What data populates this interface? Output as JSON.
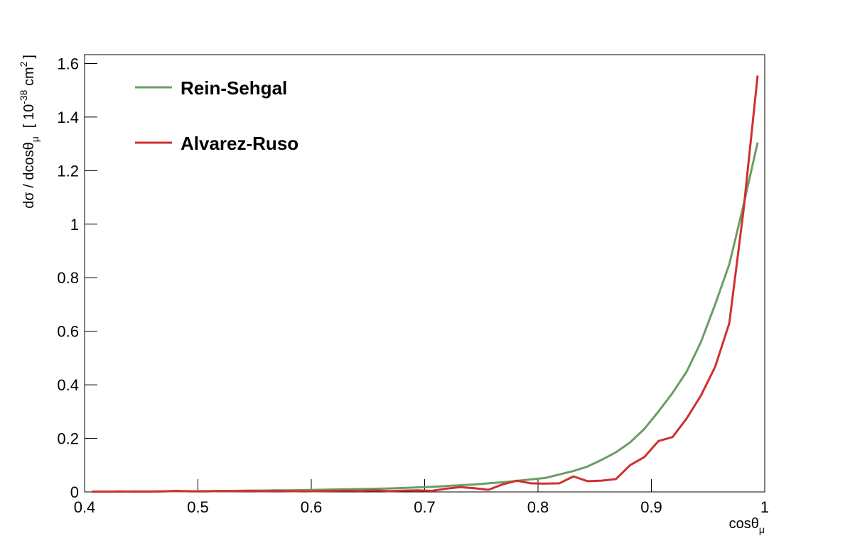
{
  "chart_data": {
    "type": "line",
    "x_label": {
      "text": "cosθ",
      "sub": "μ"
    },
    "y_label": {
      "text": "dσ / dcosθ",
      "sub": "μ",
      "open": "[ 10",
      "sup1": "-38",
      "unit": " cm",
      "sup2": "2",
      "close": "]"
    },
    "x": [
      0.40625,
      0.41875,
      0.43125,
      0.44375,
      0.45625,
      0.46875,
      0.48125,
      0.49375,
      0.50625,
      0.51875,
      0.53125,
      0.54375,
      0.55625,
      0.56875,
      0.58125,
      0.59375,
      0.60625,
      0.61875,
      0.63125,
      0.64375,
      0.65625,
      0.66875,
      0.68125,
      0.69375,
      0.70625,
      0.71875,
      0.73125,
      0.74375,
      0.75625,
      0.76875,
      0.78125,
      0.79375,
      0.80625,
      0.81875,
      0.83125,
      0.84375,
      0.85625,
      0.86875,
      0.88125,
      0.89375,
      0.90625,
      0.91875,
      0.93125,
      0.94375,
      0.95625,
      0.96875,
      0.98125,
      0.99375
    ],
    "series": [
      {
        "name": "Rein-Sehgal",
        "color": "#6a9e64",
        "values": [
          0.001,
          0.001,
          0.001,
          0.002,
          0.002,
          0.002,
          0.003,
          0.003,
          0.003,
          0.004,
          0.004,
          0.005,
          0.005,
          0.006,
          0.006,
          0.007,
          0.008,
          0.009,
          0.01,
          0.011,
          0.012,
          0.013,
          0.015,
          0.017,
          0.019,
          0.022,
          0.025,
          0.028,
          0.032,
          0.036,
          0.041,
          0.047,
          0.052,
          0.065,
          0.078,
          0.095,
          0.12,
          0.148,
          0.185,
          0.235,
          0.3,
          0.37,
          0.45,
          0.56,
          0.7,
          0.85,
          1.07,
          1.305
        ]
      },
      {
        "name": "Alvarez-Ruso",
        "color": "#d03030",
        "values": [
          0.001,
          0.001,
          0.002,
          0.001,
          0.001,
          0.002,
          0.004,
          0.002,
          0.002,
          0.003,
          0.003,
          0.004,
          0.003,
          0.004,
          0.003,
          0.002,
          0.003,
          0.004,
          0.005,
          0.004,
          0.006,
          0.003,
          0.005,
          0.006,
          0.004,
          0.012,
          0.018,
          0.014,
          0.008,
          0.028,
          0.042,
          0.032,
          0.031,
          0.032,
          0.058,
          0.04,
          0.042,
          0.048,
          0.1,
          0.13,
          0.19,
          0.205,
          0.275,
          0.36,
          0.467,
          0.63,
          1.05,
          1.555
        ]
      }
    ],
    "xlim": [
      0.4,
      1
    ],
    "ylim": [
      0,
      1.633
    ],
    "xticks": [
      0.4,
      0.5,
      0.6,
      0.7,
      0.8,
      0.9,
      1
    ],
    "yticks": [
      0,
      0.2,
      0.4,
      0.6,
      0.8,
      1,
      1.2,
      1.4,
      1.6
    ],
    "legend": "top-left"
  }
}
